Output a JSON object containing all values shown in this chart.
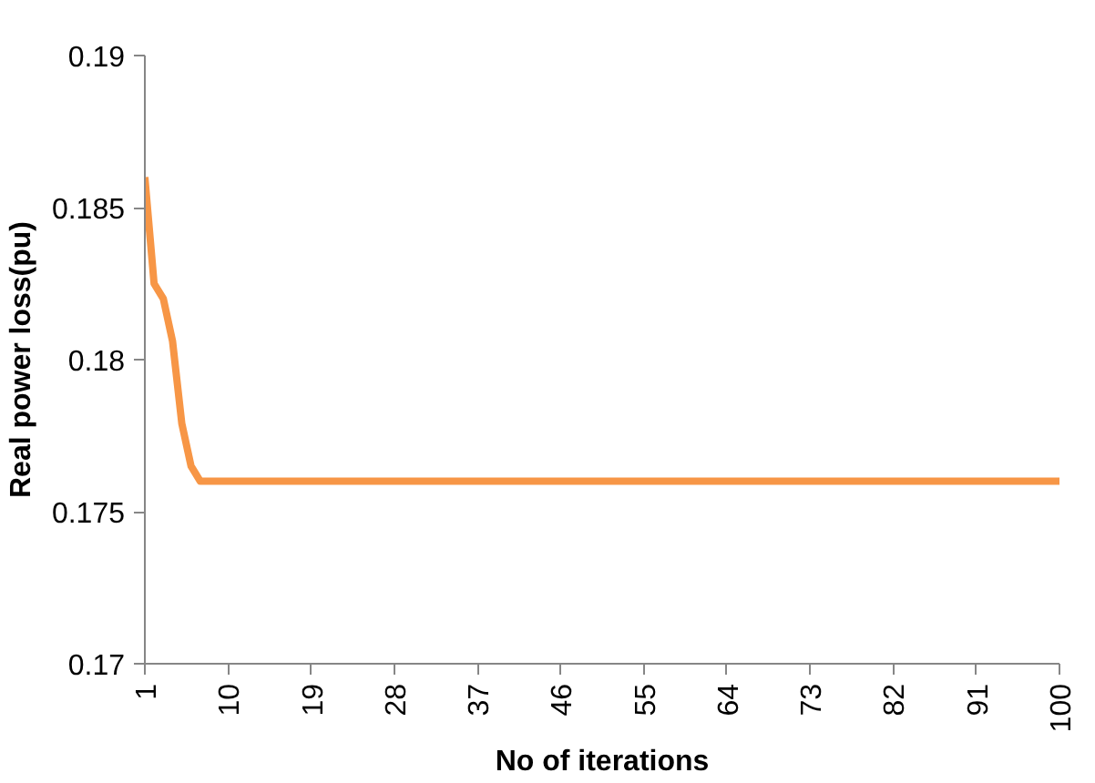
{
  "chart_data": {
    "type": "line",
    "xlabel": "No of iterations",
    "ylabel": "Real power loss(pu)",
    "x": [
      1,
      2,
      3,
      4,
      5,
      6,
      7,
      8,
      9,
      10,
      11,
      12,
      13,
      14,
      15,
      16,
      17,
      18,
      19,
      20,
      21,
      22,
      23,
      24,
      25,
      26,
      27,
      28,
      29,
      30,
      31,
      32,
      33,
      34,
      35,
      36,
      37,
      38,
      39,
      40,
      41,
      42,
      43,
      44,
      45,
      46,
      47,
      48,
      49,
      50,
      51,
      52,
      53,
      54,
      55,
      56,
      57,
      58,
      59,
      60,
      61,
      62,
      63,
      64,
      65,
      66,
      67,
      68,
      69,
      70,
      71,
      72,
      73,
      74,
      75,
      76,
      77,
      78,
      79,
      80,
      81,
      82,
      83,
      84,
      85,
      86,
      87,
      88,
      89,
      90,
      91,
      92,
      93,
      94,
      95,
      96,
      97,
      98,
      99,
      100
    ],
    "series": [
      {
        "color": "#f79646",
        "values": [
          0.186,
          0.1825,
          0.182,
          0.1806,
          0.1779,
          0.1765,
          0.176,
          0.176,
          0.176,
          0.176,
          0.176,
          0.176,
          0.176,
          0.176,
          0.176,
          0.176,
          0.176,
          0.176,
          0.176,
          0.176,
          0.176,
          0.176,
          0.176,
          0.176,
          0.176,
          0.176,
          0.176,
          0.176,
          0.176,
          0.176,
          0.176,
          0.176,
          0.176,
          0.176,
          0.176,
          0.176,
          0.176,
          0.176,
          0.176,
          0.176,
          0.176,
          0.176,
          0.176,
          0.176,
          0.176,
          0.176,
          0.176,
          0.176,
          0.176,
          0.176,
          0.176,
          0.176,
          0.176,
          0.176,
          0.176,
          0.176,
          0.176,
          0.176,
          0.176,
          0.176,
          0.176,
          0.176,
          0.176,
          0.176,
          0.176,
          0.176,
          0.176,
          0.176,
          0.176,
          0.176,
          0.176,
          0.176,
          0.176,
          0.176,
          0.176,
          0.176,
          0.176,
          0.176,
          0.176,
          0.176,
          0.176,
          0.176,
          0.176,
          0.176,
          0.176,
          0.176,
          0.176,
          0.176,
          0.176,
          0.176,
          0.176,
          0.176,
          0.176,
          0.176,
          0.176,
          0.176,
          0.176,
          0.176,
          0.176,
          0.176
        ]
      }
    ],
    "xlim": [
      1,
      100
    ],
    "xticks": [
      1,
      10,
      19,
      28,
      37,
      46,
      55,
      64,
      73,
      82,
      91,
      100
    ],
    "ylim": [
      0.17,
      0.19
    ],
    "yticks": [
      0.17,
      0.175,
      0.18,
      0.185,
      0.19
    ],
    "grid": false,
    "marker": "none",
    "line_style": "solid"
  }
}
